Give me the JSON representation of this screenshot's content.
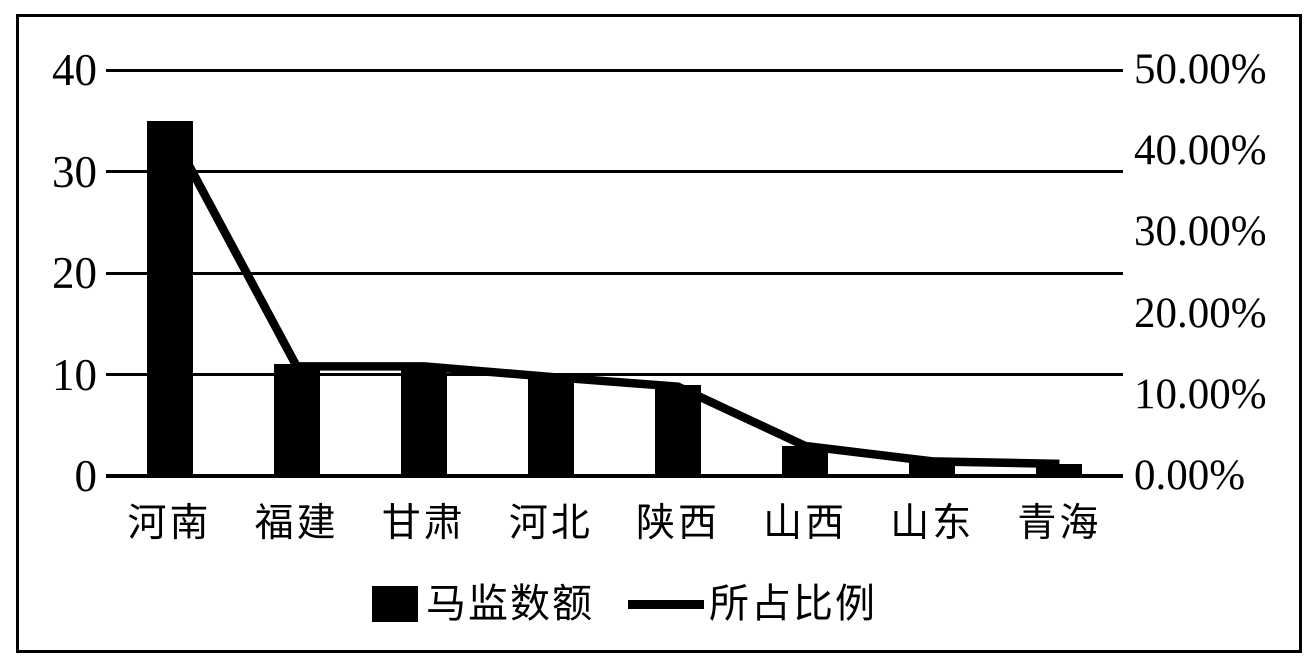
{
  "chart_data": {
    "type": "combo-bar-line",
    "title": "",
    "categories": [
      "河南",
      "福建",
      "甘肃",
      "河北",
      "陕西",
      "山西",
      "山东",
      "青海"
    ],
    "series": [
      {
        "name": "马监数额",
        "type": "bar",
        "axis": "left",
        "values": [
          35,
          11,
          11,
          10,
          9,
          3,
          1.5,
          1.2
        ]
      },
      {
        "name": "所占比例",
        "type": "line",
        "axis": "right",
        "values_percent": [
          42.7,
          13.5,
          13.5,
          12.2,
          11.0,
          3.7,
          1.8,
          1.5
        ]
      }
    ],
    "left_axis": {
      "min": 0,
      "max": 40,
      "tick_values": [
        0,
        10,
        20,
        30,
        40
      ],
      "tick_labels": [
        "0",
        "10",
        "20",
        "30",
        "40"
      ]
    },
    "right_axis": {
      "min_percent": 0,
      "max_percent": 50,
      "tick_values": [
        0,
        10,
        20,
        30,
        40,
        50
      ],
      "tick_labels": [
        "0.00%",
        "10.00%",
        "20.00%",
        "30.00%",
        "40.00%",
        "50.00%"
      ]
    },
    "grid": true,
    "legend_position": "bottom",
    "colors": {
      "bar": "#000000",
      "line": "#000000",
      "background": "#fffffe",
      "frame": "#000000"
    }
  }
}
